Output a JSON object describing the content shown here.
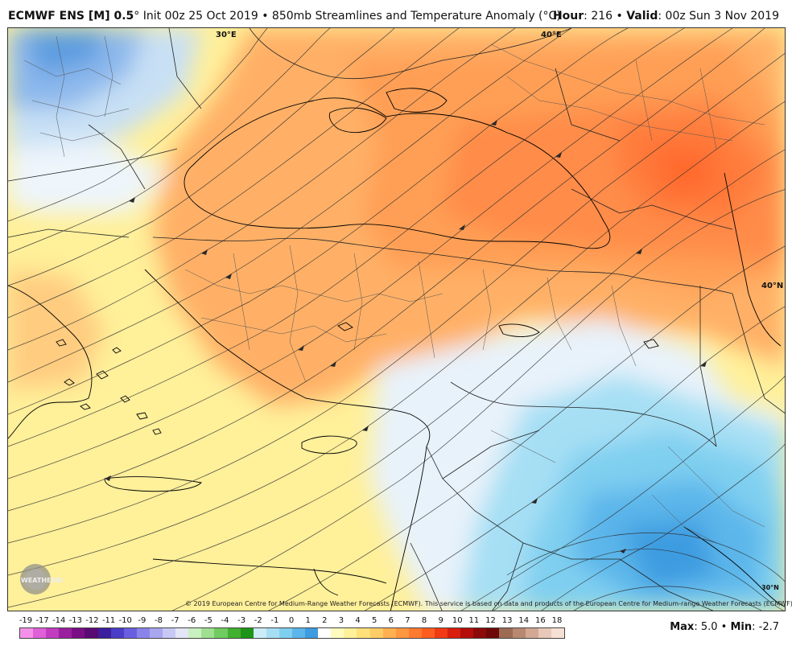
{
  "header": {
    "model": "ECMWF ENS [M] 0.5",
    "degree": "°",
    "init": "Init 00z 25 Oct 2019",
    "bullet": "•",
    "product": "850mb Streamlines and Temperature Anomaly (°C)",
    "hour_label": "Hour",
    "hour_value": ": 216",
    "valid_label": "Valid",
    "valid_value": ": 00z Sun 3 Nov 2019"
  },
  "map": {
    "lon_labels": [
      "30°E",
      "40°E"
    ],
    "lat_labels": [
      "40°N",
      "30°N"
    ],
    "copyright": "© 2019 European Centre for Medium-Range Weather Forecasts (ECMWF). This service is based on data and products of the European Centre for Medium-range Weather Forecasts (ECMWF).",
    "logo_text": "WEATHERBELL"
  },
  "legend": {
    "ticks": [
      "-19",
      "-17",
      "-14",
      "-13",
      "-12",
      "-11",
      "-10",
      "-9",
      "-8",
      "-7",
      "-6",
      "-5",
      "-4",
      "-3",
      "-2",
      "-1",
      "0",
      "1",
      "2",
      "3",
      "4",
      "5",
      "6",
      "7",
      "8",
      "9",
      "10",
      "11",
      "12",
      "13",
      "14",
      "16",
      "18"
    ],
    "colors": [
      "#f590e8",
      "#e060d8",
      "#c23cc2",
      "#9a1f9e",
      "#7a0e84",
      "#5a0a73",
      "#3b1f9c",
      "#4c3dc8",
      "#6a5ee0",
      "#8a84ea",
      "#a9a6f0",
      "#c7c8f4",
      "#e4e6f8",
      "#c8f0c0",
      "#9fe090",
      "#70cc60",
      "#40b030",
      "#1e9418",
      "#ccecf8",
      "#a6dff4",
      "#7fcff0",
      "#5cb6ea",
      "#3e9ce0",
      "#ffffff",
      "#fffbc0",
      "#fff09a",
      "#ffe07a",
      "#ffcc66",
      "#ffb050",
      "#ff9640",
      "#ff7a30",
      "#ff5c20",
      "#f03a14",
      "#d81e0c",
      "#b40e0a",
      "#8c0a0a",
      "#6e0808",
      "#9c6b52",
      "#b88870",
      "#d2a894",
      "#e8c8b8",
      "#f6e0d4"
    ],
    "max_label": "Max",
    "max_value": ": 5.0",
    "min_label": "Min",
    "min_value": ": -2.7"
  }
}
